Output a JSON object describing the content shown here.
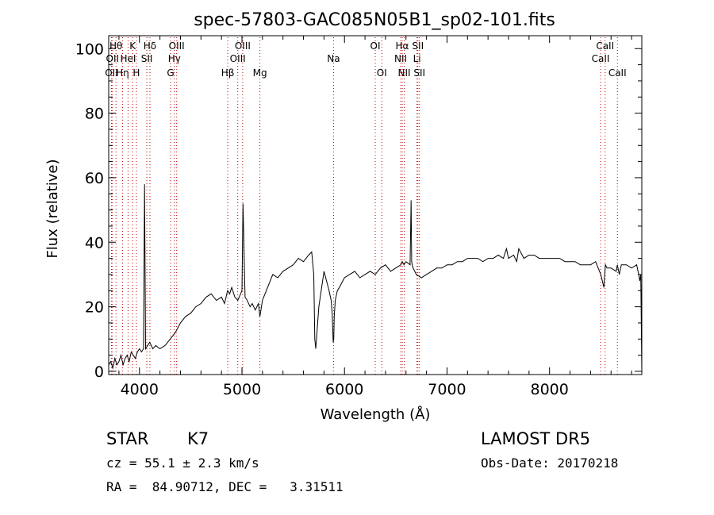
{
  "chart_data": {
    "type": "line",
    "title": "spec-57803-GAC085N05B1_sp02-101.fits",
    "xlabel": "Wavelength (Å)",
    "ylabel": "Flux (relative)",
    "xlim": [
      3700,
      8900
    ],
    "ylim": [
      -1,
      104
    ],
    "x_ticks": [
      4000,
      5000,
      6000,
      7000,
      8000
    ],
    "y_ticks": [
      0,
      20,
      40,
      60,
      80,
      100
    ],
    "grid": false,
    "series": [
      {
        "x": [
          3700,
          3720,
          3740,
          3760,
          3780,
          3800,
          3820,
          3840,
          3860,
          3880,
          3900,
          3920,
          3940,
          3960,
          3980,
          4000,
          4020,
          4040,
          4050,
          4060,
          4080,
          4100,
          4130,
          4160,
          4200,
          4250,
          4300,
          4350,
          4400,
          4450,
          4500,
          4550,
          4600,
          4650,
          4700,
          4750,
          4800,
          4830,
          4860,
          4880,
          4900,
          4930,
          4960,
          5000,
          5010,
          5030,
          5050,
          5080,
          5100,
          5130,
          5160,
          5175,
          5180,
          5200,
          5250,
          5300,
          5350,
          5400,
          5450,
          5500,
          5550,
          5600,
          5650,
          5680,
          5700,
          5710,
          5720,
          5750,
          5800,
          5850,
          5870,
          5880,
          5890,
          5895,
          5900,
          5910,
          5930,
          5950,
          6000,
          6050,
          6100,
          6150,
          6200,
          6250,
          6300,
          6350,
          6400,
          6450,
          6500,
          6550,
          6563,
          6580,
          6600,
          6640,
          6650,
          6655,
          6660,
          6670,
          6700,
          6750,
          6800,
          6850,
          6900,
          6950,
          7000,
          7050,
          7100,
          7150,
          7200,
          7250,
          7300,
          7350,
          7400,
          7450,
          7500,
          7550,
          7580,
          7600,
          7650,
          7680,
          7700,
          7750,
          7800,
          7850,
          7900,
          7950,
          8000,
          8050,
          8100,
          8150,
          8200,
          8250,
          8300,
          8350,
          8400,
          8450,
          8500,
          8530,
          8545,
          8560,
          8600,
          8650,
          8662,
          8680,
          8700,
          8750,
          8800,
          8850,
          8870,
          8880,
          8890,
          8900
        ],
        "values": [
          2,
          3,
          1,
          4,
          2,
          3,
          5,
          2,
          4,
          5,
          3,
          6,
          5,
          4,
          6,
          7,
          6,
          7,
          58,
          7,
          8,
          9,
          7,
          8,
          7,
          8,
          10,
          12,
          15,
          17,
          18,
          20,
          21,
          23,
          24,
          22,
          23,
          21,
          25,
          24,
          26,
          23,
          22,
          25,
          52,
          23,
          22,
          20,
          21,
          19,
          21,
          17,
          18,
          22,
          26,
          30,
          29,
          31,
          32,
          33,
          35,
          34,
          36,
          37,
          30,
          10,
          7,
          20,
          31,
          25,
          22,
          18,
          9,
          10,
          17,
          22,
          25,
          26,
          29,
          30,
          31,
          29,
          30,
          31,
          30,
          32,
          33,
          31,
          32,
          33,
          34,
          33,
          34,
          33,
          53,
          34,
          33,
          32,
          30,
          29,
          30,
          31,
          32,
          32,
          33,
          33,
          34,
          34,
          35,
          35,
          35,
          34,
          35,
          35,
          36,
          35,
          38,
          35,
          36,
          34,
          38,
          35,
          36,
          36,
          35,
          35,
          35,
          35,
          35,
          34,
          34,
          34,
          33,
          33,
          33,
          34,
          30,
          26,
          33,
          32,
          32,
          31,
          33,
          30,
          33,
          33,
          32,
          33,
          30,
          28,
          30,
          0
        ]
      }
    ],
    "line_markers": [
      {
        "w": 3727,
        "label": "OII",
        "row": 3
      },
      {
        "w": 3737,
        "label": "OII",
        "row": 2
      },
      {
        "w": 3771,
        "label": "Hθ",
        "row": 1
      },
      {
        "w": 3835,
        "label": "Hη",
        "row": 3
      },
      {
        "w": 3889,
        "label": "HeI",
        "row": 2
      },
      {
        "w": 3934,
        "label": "K",
        "row": 1
      },
      {
        "w": 3970,
        "label": "H",
        "row": 3
      },
      {
        "w": 4072,
        "label": "SII",
        "row": 2
      },
      {
        "w": 4102,
        "label": "Hδ",
        "row": 1
      },
      {
        "w": 4304,
        "label": "G",
        "row": 3
      },
      {
        "w": 4341,
        "label": "Hγ",
        "row": 2
      },
      {
        "w": 4363,
        "label": "OIII",
        "row": 1
      },
      {
        "w": 4861,
        "label": "Hβ",
        "row": 3
      },
      {
        "w": 4959,
        "label": "OIII",
        "row": 2
      },
      {
        "w": 5007,
        "label": "OIII",
        "row": 1
      },
      {
        "w": 5175,
        "label": "Mg",
        "row": 3
      },
      {
        "w": 5893,
        "label": "Na",
        "row": 2
      },
      {
        "w": 6300,
        "label": "OI",
        "row": 1
      },
      {
        "w": 6364,
        "label": "OI",
        "row": 3
      },
      {
        "w": 6548,
        "label": "NII",
        "row": 2
      },
      {
        "w": 6563,
        "label": "Hα",
        "row": 1
      },
      {
        "w": 6583,
        "label": "NII",
        "row": 3
      },
      {
        "w": 6707,
        "label": "Li",
        "row": 2
      },
      {
        "w": 6716,
        "label": "SII",
        "row": 1
      },
      {
        "w": 6731,
        "label": "SII",
        "row": 3
      },
      {
        "w": 8498,
        "label": "CaII",
        "row": 2
      },
      {
        "w": 8542,
        "label": "CaII",
        "row": 1
      },
      {
        "w": 8662,
        "label": "CaII",
        "row": 3
      }
    ]
  },
  "info": {
    "object_class": "STAR",
    "subclass": "K7",
    "survey": "LAMOST DR5",
    "redshift": "cz = 55.1 ± 2.3 km/s",
    "obs_date": "Obs-Date: 20170218",
    "coords": "RA =  84.90712, DEC =   3.31511"
  }
}
